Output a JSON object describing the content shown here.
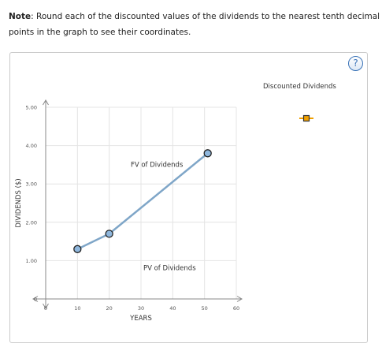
{
  "note": {
    "label": "Note",
    "text": ": Round each of the discounted values of the dividends to the nearest tenth decimal place before pl",
    "text2": "points in the graph to see their coordinates."
  },
  "help_label": "?",
  "legend": {
    "label": "Discounted Dividends",
    "marker_color": "#f0a000",
    "marker_border": "#333333"
  },
  "chart_data": {
    "type": "line",
    "xlabel": "YEARS",
    "ylabel": "DIVIDENDS ($)",
    "xlim": [
      0,
      60
    ],
    "ylim": [
      0,
      5
    ],
    "x_ticks": [
      "0",
      "10",
      "20",
      "30",
      "40",
      "50",
      "60"
    ],
    "y_ticks": [
      "0",
      "1.00",
      "2.00",
      "3.00",
      "4.00",
      "5.00"
    ],
    "grid": true,
    "series": [
      {
        "line_color": "#7fa6c8",
        "point_color": "#8fb7dd",
        "points": [
          {
            "x": 10,
            "y": 1.3
          },
          {
            "x": 20,
            "y": 1.7
          },
          {
            "x": 51,
            "y": 3.8
          }
        ]
      }
    ],
    "annotations": [
      {
        "text": "FV of Dividends",
        "x": 35,
        "y": 3.45
      },
      {
        "text": "PV of Dividends",
        "x": 39,
        "y": 0.75
      }
    ]
  }
}
